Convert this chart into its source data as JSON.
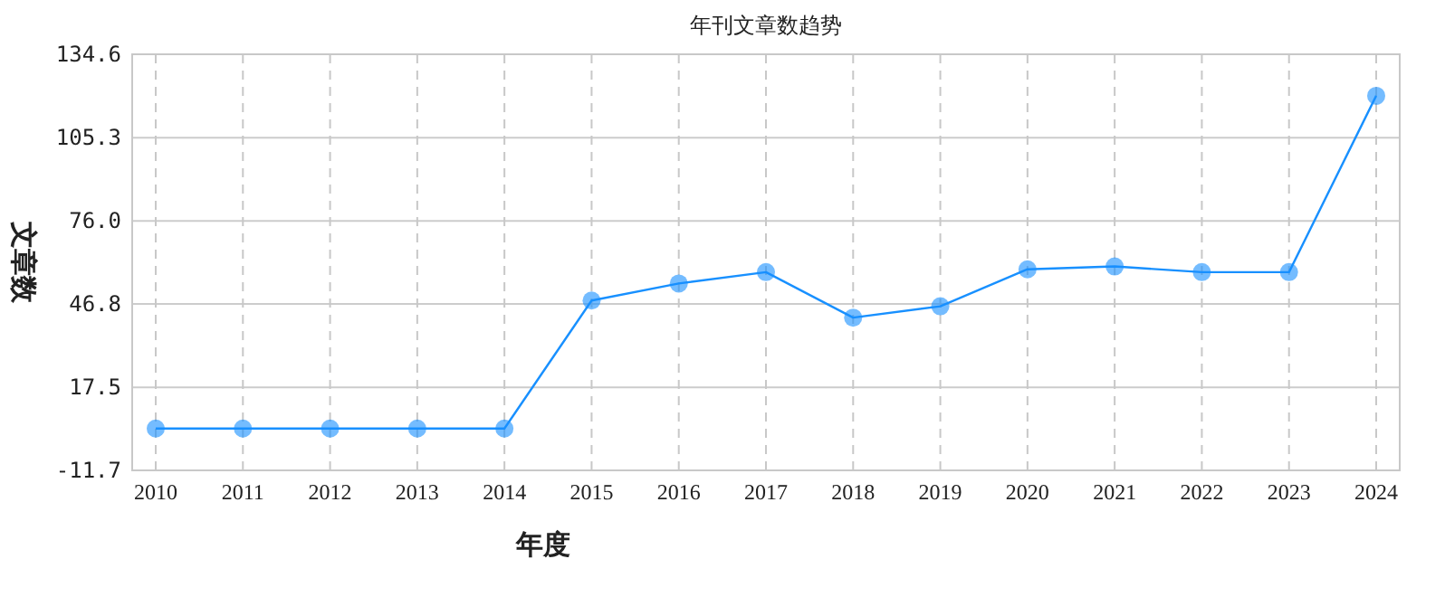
{
  "chart_data": {
    "type": "line",
    "title": "年刊文章数趋势",
    "xlabel": "年度",
    "ylabel": "文章数",
    "categories": [
      "2010",
      "2011",
      "2012",
      "2013",
      "2014",
      "2015",
      "2016",
      "2017",
      "2018",
      "2019",
      "2020",
      "2021",
      "2022",
      "2023",
      "2024"
    ],
    "series": [
      {
        "color": "#1890ff",
        "values": [
          3,
          3,
          3,
          3,
          3,
          48,
          54,
          58,
          42,
          46,
          59,
          60,
          58,
          58,
          120
        ]
      }
    ],
    "ylim": [
      -11.7,
      134.6
    ],
    "yticks": [
      -11.7,
      17.5,
      46.8,
      {
        "value": 76,
        "label": "76.0"
      },
      105.3,
      134.6
    ],
    "grid": true,
    "marker": "circle",
    "line_style": "solid"
  }
}
